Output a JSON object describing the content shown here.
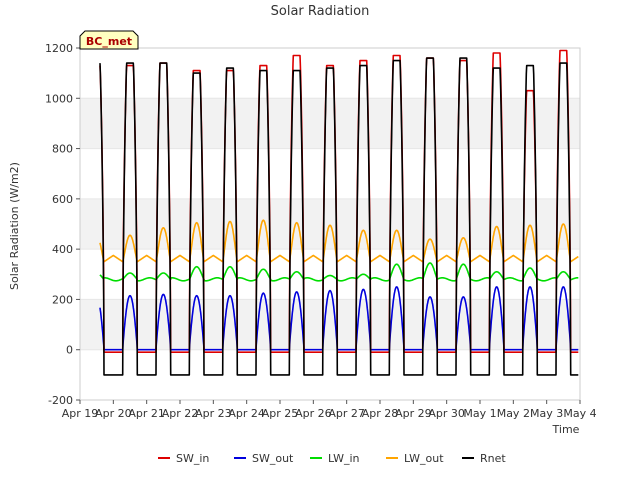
{
  "chart_data": {
    "type": "line",
    "title": "Solar Radiation",
    "xlabel": "Time",
    "ylabel": "Solar Radiation (W/m2)",
    "ylim": [
      -200,
      1200
    ],
    "yticks": [
      -200,
      0,
      200,
      400,
      600,
      800,
      1000,
      1200
    ],
    "xlim_days": [
      0,
      15
    ],
    "xtick_labels": [
      "Apr 19",
      "Apr 20",
      "Apr 21",
      "Apr 22",
      "Apr 23",
      "Apr 24",
      "Apr 25",
      "Apr 26",
      "Apr 27",
      "Apr 28",
      "Apr 29",
      "Apr 30",
      "May 1",
      "May 2",
      "May 3",
      "May 4"
    ],
    "station_label": "BC_met",
    "grid": "horizontal bands",
    "legend_position": "bottom",
    "day_range_start": 0.6,
    "day_range_end": 14.95,
    "daylight_hours": [
      0.28,
      0.72
    ],
    "series": [
      {
        "name": "SW_in",
        "color": "#dd0000",
        "night_value": -10,
        "daily_peaks": [
          1130,
          1140,
          1110,
          1110,
          1130,
          1170,
          1130,
          1150,
          1170,
          1160,
          1150,
          1180,
          1030,
          1190
        ]
      },
      {
        "name": "SW_out",
        "color": "#0000dd",
        "night_value": 0,
        "daily_peaks": [
          215,
          220,
          215,
          215,
          225,
          230,
          235,
          240,
          250,
          210,
          210,
          250,
          250,
          250
        ]
      },
      {
        "name": "LW_in",
        "color": "#00dd00",
        "night_value": 280,
        "daily_peaks": [
          305,
          305,
          330,
          330,
          320,
          310,
          295,
          300,
          340,
          345,
          340,
          310,
          325,
          310
        ]
      },
      {
        "name": "LW_out",
        "color": "#ffa500",
        "night_value": 350,
        "daily_peaks": [
          455,
          485,
          505,
          510,
          515,
          505,
          495,
          475,
          475,
          440,
          445,
          490,
          495,
          500
        ]
      },
      {
        "name": "Rnet",
        "color": "#000000",
        "night_value": -100,
        "daily_peaks": [
          1140,
          1140,
          1100,
          1120,
          1110,
          1110,
          1120,
          1130,
          1150,
          1160,
          1160,
          1120,
          1130,
          1140
        ]
      }
    ]
  }
}
